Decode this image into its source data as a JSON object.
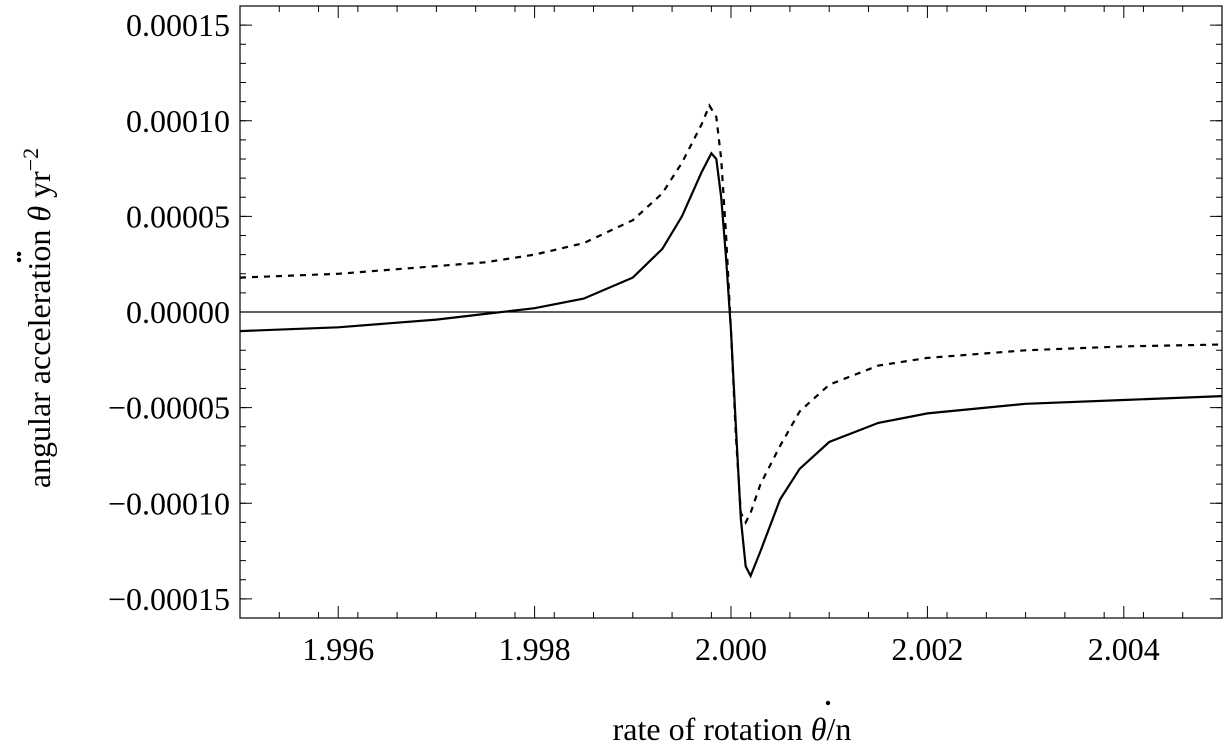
{
  "chart_data": {
    "type": "line",
    "title": "",
    "xlabel_text": "rate of rotation ",
    "xlabel_symbol": "θ",
    "xlabel_suffix": "/n",
    "ylabel_text": "angular acceleration ",
    "ylabel_symbol": "θ",
    "ylabel_unit": "  yr",
    "ylabel_exp": "−2",
    "xlim": [
      1.995,
      2.005
    ],
    "ylim": [
      -0.00016,
      0.00016
    ],
    "x_ticks": [
      1.996,
      1.998,
      2.0,
      2.002,
      2.004
    ],
    "x_tick_labels": [
      "1.996",
      "1.998",
      "2.000",
      "2.002",
      "2.004"
    ],
    "y_ticks": [
      0.00015,
      0.0001,
      5e-05,
      0.0,
      -5e-05,
      -0.0001,
      -0.00015
    ],
    "y_tick_labels": [
      "0.00015",
      "0.00010",
      "0.00005",
      "0.00000",
      "−0.00005",
      "−0.00010",
      "−0.00015"
    ],
    "zero_line": true,
    "grid": false,
    "series": [
      {
        "style": "solid",
        "x": [
          1.995,
          1.996,
          1.997,
          1.9975,
          1.998,
          1.9985,
          1.999,
          1.9993,
          1.9995,
          1.9997,
          1.9998,
          1.99985,
          1.9999,
          1.99995,
          2.0,
          2.00005,
          2.0001,
          2.00015,
          2.0002,
          2.0003,
          2.0005,
          2.0007,
          2.001,
          2.0015,
          2.002,
          2.003,
          2.004,
          2.005
        ],
        "y": [
          -1e-05,
          -8e-06,
          -4e-06,
          -1e-06,
          2e-06,
          7e-06,
          1.8e-05,
          3.3e-05,
          5e-05,
          7.3e-05,
          8.3e-05,
          8e-05,
          6e-05,
          2.8e-05,
          -1e-05,
          -6e-05,
          -0.000108,
          -0.000133,
          -0.000138,
          -0.000125,
          -9.8e-05,
          -8.2e-05,
          -6.8e-05,
          -5.8e-05,
          -5.3e-05,
          -4.8e-05,
          -4.6e-05,
          -4.4e-05
        ]
      },
      {
        "style": "dashed",
        "x": [
          1.995,
          1.996,
          1.997,
          1.9975,
          1.998,
          1.9985,
          1.999,
          1.9993,
          1.9995,
          1.9997,
          1.99978,
          1.99985,
          1.9999,
          1.99995,
          2.0,
          2.00005,
          2.0001,
          2.00015,
          2.0002,
          2.0003,
          2.0005,
          2.0007,
          2.001,
          2.0015,
          2.002,
          2.003,
          2.004,
          2.005
        ],
        "y": [
          1.8e-05,
          2e-05,
          2.4e-05,
          2.6e-05,
          3e-05,
          3.6e-05,
          4.8e-05,
          6.2e-05,
          7.8e-05,
          9.8e-05,
          0.000108,
          0.000102,
          8e-05,
          4e-05,
          -1e-05,
          -6.5e-05,
          -0.000105,
          -0.00011,
          -0.000105,
          -9e-05,
          -7e-05,
          -5.2e-05,
          -3.8e-05,
          -2.8e-05,
          -2.4e-05,
          -2e-05,
          -1.8e-05,
          -1.7e-05
        ]
      }
    ]
  }
}
